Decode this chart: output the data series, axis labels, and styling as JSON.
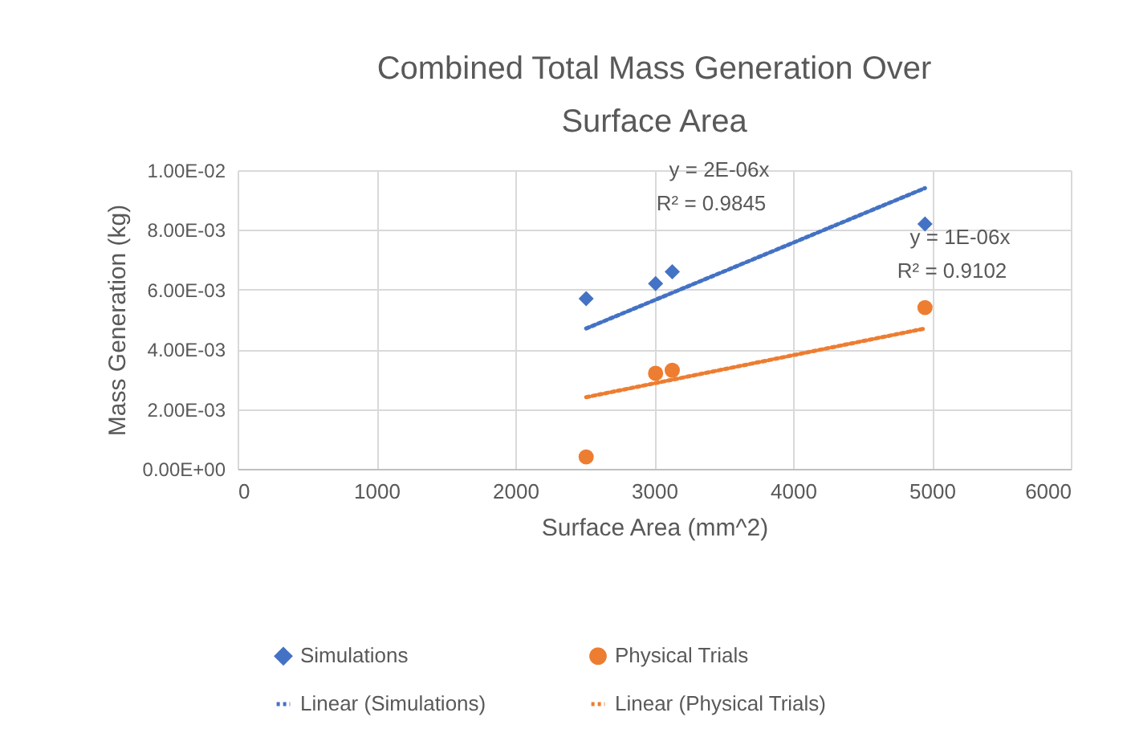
{
  "chart_data": {
    "type": "scatter",
    "title": "Combined Total Mass Generation Over Surface Area",
    "xlabel": "Surface Area (mm^2)",
    "ylabel": "Mass Generation (kg)",
    "xlim": [
      0,
      6000
    ],
    "xticks": [
      0,
      1000,
      2000,
      3000,
      4000,
      5000,
      6000
    ],
    "ylim": [
      0,
      0.01
    ],
    "yticks": [
      {
        "value": 0,
        "label": "0.00E+00"
      },
      {
        "value": 0.002,
        "label": "2.00E-03"
      },
      {
        "value": 0.004,
        "label": "4.00E-03"
      },
      {
        "value": 0.006,
        "label": "6.00E-03"
      },
      {
        "value": 0.008,
        "label": "8.00E-03"
      },
      {
        "value": 0.01,
        "label": "1.00E-02"
      }
    ],
    "grid": true,
    "legend": "bottom",
    "series": [
      {
        "name": "Simulations",
        "type": "scatter",
        "marker": "diamond",
        "color": "#4472c4",
        "x": [
          2510,
          3010,
          3130,
          4950
        ],
        "values": [
          0.0057,
          0.0062,
          0.0066,
          0.0082
        ]
      },
      {
        "name": "Physical Trials",
        "type": "scatter",
        "marker": "circle",
        "color": "#ed7d31",
        "x": [
          2510,
          3010,
          3130,
          4950
        ],
        "values": [
          0.0004,
          0.0032,
          0.0033,
          0.0054
        ]
      },
      {
        "name": "Linear (Simulations)",
        "type": "line",
        "line_style": "dotted",
        "color": "#4472c4",
        "x": [
          2510,
          4950
        ],
        "values": [
          0.0047,
          0.0094
        ]
      },
      {
        "name": "Linear (Physical Trials)",
        "type": "line",
        "line_style": "dotted",
        "color": "#ed7d31",
        "x": [
          2510,
          4950
        ],
        "values": [
          0.0024,
          0.0047
        ]
      }
    ],
    "annotations": [
      "y = 2E-06x",
      "R² = 0.9845",
      "y = 1E-06x",
      "R² = 0.9102"
    ]
  }
}
